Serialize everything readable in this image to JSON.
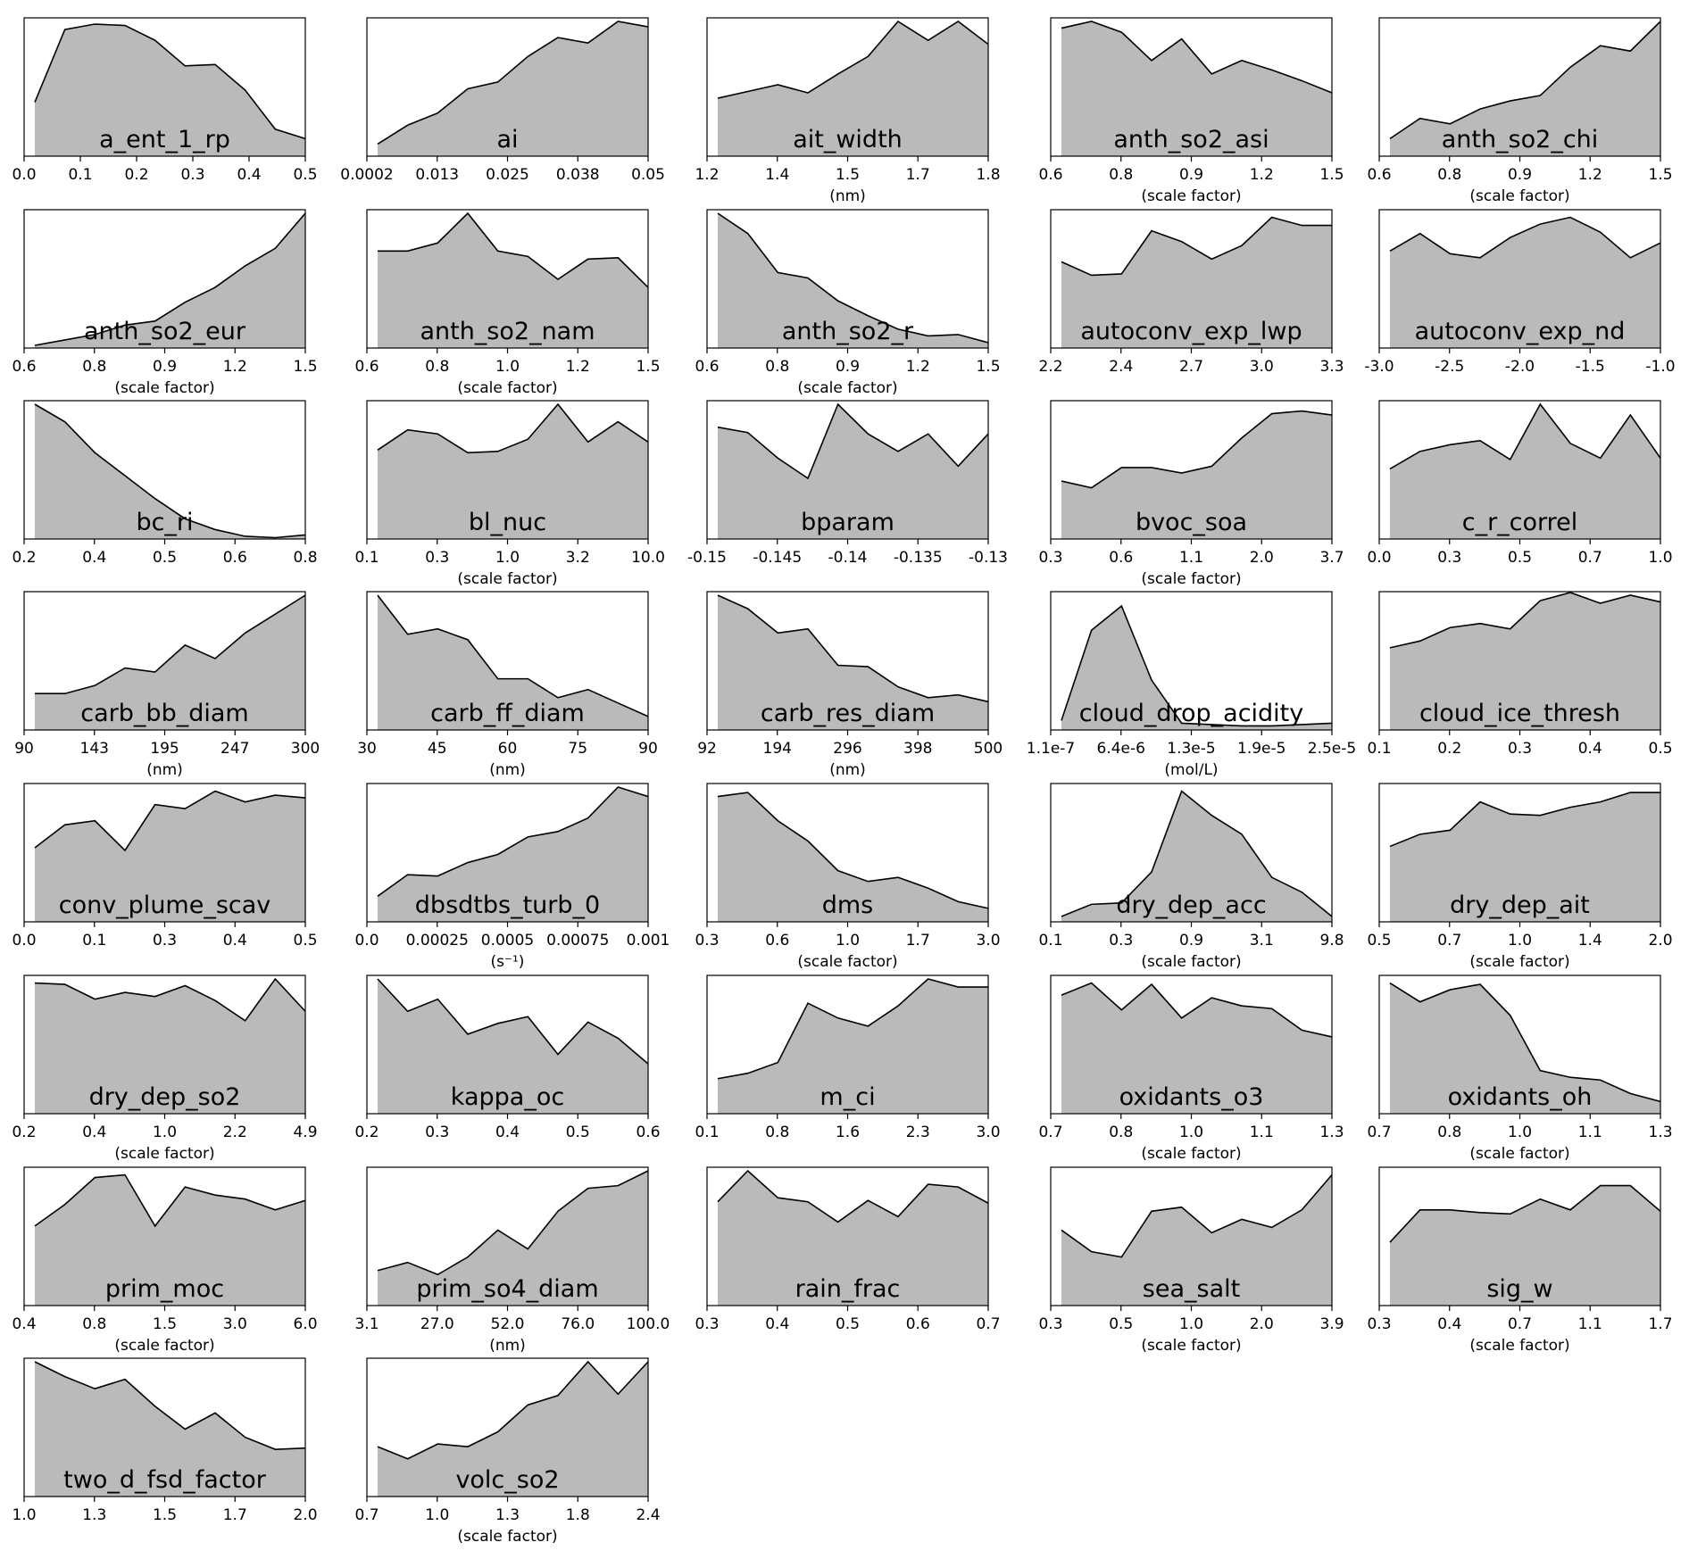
{
  "colors": {
    "fill": "#bababa",
    "line": "#000000",
    "background": "#ffffff"
  },
  "chart_data": [
    {
      "type": "area",
      "title": "a_ent_1_rp",
      "xlabel": "",
      "xticks": [
        "0.0",
        "0.1",
        "0.2",
        "0.3",
        "0.4",
        "0.5"
      ],
      "values": [
        0.4,
        0.94,
        0.98,
        0.97,
        0.86,
        0.67,
        0.68,
        0.49,
        0.2,
        0.13
      ]
    },
    {
      "type": "area",
      "title": "ai",
      "xlabel": "",
      "xticks": [
        "0.0002",
        "0.013",
        "0.025",
        "0.038",
        "0.05"
      ],
      "values": [
        0.09,
        0.23,
        0.32,
        0.5,
        0.55,
        0.74,
        0.88,
        0.84,
        1.0,
        0.96
      ]
    },
    {
      "type": "area",
      "title": "ait_width",
      "xlabel": "(nm)",
      "xticks": [
        "1.2",
        "1.4",
        "1.5",
        "1.7",
        "1.8"
      ],
      "values": [
        0.43,
        0.48,
        0.53,
        0.47,
        0.61,
        0.74,
        1.0,
        0.86,
        1.0,
        0.83
      ]
    },
    {
      "type": "area",
      "title": "anth_so2_asi",
      "xlabel": "(scale factor)",
      "xticks": [
        "0.6",
        "0.8",
        "0.9",
        "1.2",
        "1.5"
      ],
      "values": [
        0.95,
        1.0,
        0.92,
        0.71,
        0.87,
        0.61,
        0.71,
        0.64,
        0.56,
        0.47
      ]
    },
    {
      "type": "area",
      "title": "anth_so2_chi",
      "xlabel": "(scale factor)",
      "xticks": [
        "0.6",
        "0.8",
        "0.9",
        "1.2",
        "1.5"
      ],
      "values": [
        0.13,
        0.28,
        0.24,
        0.35,
        0.41,
        0.45,
        0.66,
        0.82,
        0.78,
        1.0
      ]
    },
    {
      "type": "area",
      "title": "anth_so2_eur",
      "xlabel": "(scale factor)",
      "xticks": [
        "0.6",
        "0.8",
        "0.9",
        "1.2",
        "1.5"
      ],
      "values": [
        0.02,
        0.06,
        0.1,
        0.17,
        0.2,
        0.34,
        0.45,
        0.61,
        0.74,
        1.0
      ]
    },
    {
      "type": "area",
      "title": "anth_so2_nam",
      "xlabel": "(scale factor)",
      "xticks": [
        "0.6",
        "0.8",
        "1.0",
        "1.2",
        "1.5"
      ],
      "values": [
        0.72,
        0.72,
        0.78,
        1.0,
        0.72,
        0.68,
        0.51,
        0.66,
        0.67,
        0.45
      ]
    },
    {
      "type": "area",
      "title": "anth_so2_r",
      "xlabel": "(scale factor)",
      "xticks": [
        "0.6",
        "0.8",
        "0.9",
        "1.2",
        "1.5"
      ],
      "values": [
        1.0,
        0.85,
        0.56,
        0.52,
        0.35,
        0.24,
        0.14,
        0.09,
        0.1,
        0.04
      ]
    },
    {
      "type": "area",
      "title": "autoconv_exp_lwp",
      "xlabel": "",
      "xticks": [
        "2.2",
        "2.4",
        "2.7",
        "3.0",
        "3.3"
      ],
      "values": [
        0.64,
        0.54,
        0.55,
        0.87,
        0.79,
        0.66,
        0.76,
        0.97,
        0.91,
        0.91
      ]
    },
    {
      "type": "area",
      "title": "autoconv_exp_nd",
      "xlabel": "",
      "xticks": [
        "-3.0",
        "-2.5",
        "-2.0",
        "-1.5",
        "-1.0"
      ],
      "values": [
        0.72,
        0.85,
        0.7,
        0.67,
        0.82,
        0.92,
        0.97,
        0.86,
        0.67,
        0.78
      ]
    },
    {
      "type": "area",
      "title": "bc_ri",
      "xlabel": "",
      "xticks": [
        "0.2",
        "0.4",
        "0.5",
        "0.6",
        "0.8"
      ],
      "values": [
        1.0,
        0.87,
        0.64,
        0.47,
        0.3,
        0.15,
        0.07,
        0.02,
        0.01,
        0.03
      ]
    },
    {
      "type": "area",
      "title": "bl_nuc",
      "xlabel": "(scale factor)",
      "xticks": [
        "0.1",
        "0.3",
        "1.0",
        "3.2",
        "10.0"
      ],
      "values": [
        0.66,
        0.81,
        0.78,
        0.64,
        0.65,
        0.74,
        1.0,
        0.72,
        0.87,
        0.72
      ]
    },
    {
      "type": "area",
      "title": "bparam",
      "xlabel": "",
      "xticks": [
        "-0.15",
        "-0.145",
        "-0.14",
        "-0.135",
        "-0.13"
      ],
      "values": [
        0.83,
        0.79,
        0.6,
        0.45,
        1.0,
        0.78,
        0.65,
        0.78,
        0.54,
        0.78
      ]
    },
    {
      "type": "area",
      "title": "bvoc_soa",
      "xlabel": "(scale factor)",
      "xticks": [
        "0.3",
        "0.6",
        "1.1",
        "2.0",
        "3.7"
      ],
      "values": [
        0.43,
        0.38,
        0.53,
        0.53,
        0.49,
        0.54,
        0.75,
        0.93,
        0.95,
        0.92
      ]
    },
    {
      "type": "area",
      "title": "c_r_correl",
      "xlabel": "",
      "xticks": [
        "0.0",
        "0.3",
        "0.5",
        "0.7",
        "1.0"
      ],
      "values": [
        0.52,
        0.65,
        0.7,
        0.73,
        0.59,
        1.0,
        0.71,
        0.6,
        0.92,
        0.6
      ]
    },
    {
      "type": "area",
      "title": "carb_bb_diam",
      "xlabel": "(nm)",
      "xticks": [
        "90",
        "143",
        "195",
        "247",
        "300"
      ],
      "values": [
        0.27,
        0.27,
        0.33,
        0.46,
        0.43,
        0.63,
        0.53,
        0.72,
        0.86,
        1.0
      ]
    },
    {
      "type": "area",
      "title": "carb_ff_diam",
      "xlabel": "(nm)",
      "xticks": [
        "30",
        "45",
        "60",
        "75",
        "90"
      ],
      "values": [
        1.0,
        0.71,
        0.75,
        0.67,
        0.38,
        0.38,
        0.24,
        0.3,
        0.2,
        0.1
      ]
    },
    {
      "type": "area",
      "title": "carb_res_diam",
      "xlabel": "(nm)",
      "xticks": [
        "92",
        "194",
        "296",
        "398",
        "500"
      ],
      "values": [
        1.0,
        0.9,
        0.72,
        0.75,
        0.48,
        0.47,
        0.32,
        0.24,
        0.26,
        0.21
      ]
    },
    {
      "type": "area",
      "title": "cloud_drop_acidity",
      "xlabel": "(mol/L)",
      "xticks": [
        "1.1e-7",
        "6.4e-6",
        "1.3e-5",
        "1.9e-5",
        "2.5e-5"
      ],
      "values": [
        0.07,
        0.74,
        0.92,
        0.37,
        0.05,
        0.04,
        0.03,
        0.03,
        0.04,
        0.05
      ]
    },
    {
      "type": "area",
      "title": "cloud_ice_thresh",
      "xlabel": "",
      "xticks": [
        "0.1",
        "0.2",
        "0.3",
        "0.4",
        "0.5"
      ],
      "values": [
        0.61,
        0.66,
        0.76,
        0.79,
        0.75,
        0.96,
        1.02,
        0.94,
        1.0,
        0.95
      ]
    },
    {
      "type": "area",
      "title": "conv_plume_scav",
      "xlabel": "",
      "xticks": [
        "0.0",
        "0.1",
        "0.3",
        "0.4",
        "0.5"
      ],
      "values": [
        0.55,
        0.72,
        0.75,
        0.53,
        0.87,
        0.84,
        0.97,
        0.89,
        0.94,
        0.92
      ]
    },
    {
      "type": "area",
      "title": "dbsdtbs_turb_0",
      "xlabel": "(s⁻¹)",
      "xticks": [
        "0.0",
        "0.00025",
        "0.0005",
        "0.00075",
        "0.001"
      ],
      "values": [
        0.19,
        0.35,
        0.34,
        0.44,
        0.5,
        0.63,
        0.67,
        0.77,
        1.0,
        0.93
      ]
    },
    {
      "type": "area",
      "title": "dms",
      "xlabel": "(scale factor)",
      "xticks": [
        "0.3",
        "0.6",
        "1.0",
        "1.7",
        "3.0"
      ],
      "values": [
        0.93,
        0.96,
        0.75,
        0.6,
        0.38,
        0.3,
        0.33,
        0.25,
        0.15,
        0.1
      ]
    },
    {
      "type": "area",
      "title": "dry_dep_acc",
      "xlabel": "(scale factor)",
      "xticks": [
        "0.1",
        "0.3",
        "0.9",
        "3.1",
        "9.8"
      ],
      "values": [
        0.04,
        0.13,
        0.14,
        0.37,
        0.97,
        0.79,
        0.65,
        0.33,
        0.22,
        0.04
      ]
    },
    {
      "type": "area",
      "title": "dry_dep_ait",
      "xlabel": "(scale factor)",
      "xticks": [
        "0.5",
        "0.7",
        "1.0",
        "1.4",
        "2.0"
      ],
      "values": [
        0.56,
        0.65,
        0.68,
        0.89,
        0.8,
        0.79,
        0.85,
        0.89,
        0.96,
        0.96
      ]
    },
    {
      "type": "area",
      "title": "dry_dep_so2",
      "xlabel": "(scale factor)",
      "xticks": [
        "0.2",
        "0.4",
        "1.0",
        "2.2",
        "4.9"
      ],
      "values": [
        0.97,
        0.96,
        0.85,
        0.9,
        0.87,
        0.95,
        0.84,
        0.69,
        1.0,
        0.76
      ]
    },
    {
      "type": "area",
      "title": "kappa_oc",
      "xlabel": "",
      "xticks": [
        "0.2",
        "0.3",
        "0.4",
        "0.5",
        "0.6"
      ],
      "values": [
        1.0,
        0.76,
        0.85,
        0.59,
        0.67,
        0.72,
        0.44,
        0.68,
        0.56,
        0.37
      ]
    },
    {
      "type": "area",
      "title": "m_ci",
      "xlabel": "",
      "xticks": [
        "0.1",
        "0.8",
        "1.6",
        "2.3",
        "3.0"
      ],
      "values": [
        0.26,
        0.3,
        0.38,
        0.82,
        0.71,
        0.65,
        0.8,
        1.0,
        0.94,
        0.94
      ]
    },
    {
      "type": "area",
      "title": "oxidants_o3",
      "xlabel": "(scale factor)",
      "xticks": [
        "0.7",
        "0.8",
        "1.0",
        "1.1",
        "1.3"
      ],
      "values": [
        0.88,
        0.97,
        0.77,
        0.96,
        0.71,
        0.86,
        0.8,
        0.78,
        0.62,
        0.57
      ]
    },
    {
      "type": "area",
      "title": "oxidants_oh",
      "xlabel": "(scale factor)",
      "xticks": [
        "0.7",
        "0.8",
        "1.0",
        "1.1",
        "1.3"
      ],
      "values": [
        0.97,
        0.83,
        0.92,
        0.96,
        0.73,
        0.32,
        0.27,
        0.25,
        0.15,
        0.09
      ]
    },
    {
      "type": "area",
      "title": "prim_moc",
      "xlabel": "(scale factor)",
      "xticks": [
        "0.4",
        "0.8",
        "1.5",
        "3.0",
        "6.0"
      ],
      "values": [
        0.59,
        0.75,
        0.95,
        0.97,
        0.59,
        0.88,
        0.82,
        0.79,
        0.71,
        0.78
      ]
    },
    {
      "type": "area",
      "title": "prim_so4_diam",
      "xlabel": "(nm)",
      "xticks": [
        "3.1",
        "27.0",
        "52.0",
        "76.0",
        "100.0"
      ],
      "values": [
        0.26,
        0.32,
        0.23,
        0.36,
        0.56,
        0.42,
        0.7,
        0.87,
        0.89,
        1.0
      ]
    },
    {
      "type": "area",
      "title": "rain_frac",
      "xlabel": "",
      "xticks": [
        "0.3",
        "0.4",
        "0.5",
        "0.6",
        "0.7"
      ],
      "values": [
        0.77,
        1.0,
        0.8,
        0.77,
        0.62,
        0.78,
        0.66,
        0.9,
        0.88,
        0.76
      ]
    },
    {
      "type": "area",
      "title": "sea_salt",
      "xlabel": "(scale factor)",
      "xticks": [
        "0.3",
        "0.5",
        "1.0",
        "2.0",
        "3.9"
      ],
      "values": [
        0.56,
        0.4,
        0.36,
        0.7,
        0.73,
        0.54,
        0.64,
        0.58,
        0.71,
        0.97
      ]
    },
    {
      "type": "area",
      "title": "sig_w",
      "xlabel": "(scale factor)",
      "xticks": [
        "0.3",
        "0.4",
        "0.7",
        "1.1",
        "1.7"
      ],
      "values": [
        0.47,
        0.71,
        0.71,
        0.69,
        0.68,
        0.79,
        0.71,
        0.89,
        0.89,
        0.7
      ]
    },
    {
      "type": "area",
      "title": "two_d_fsd_factor",
      "xlabel": "",
      "xticks": [
        "1.0",
        "1.3",
        "1.5",
        "1.7",
        "2.0"
      ],
      "values": [
        1.0,
        0.89,
        0.8,
        0.87,
        0.67,
        0.5,
        0.62,
        0.44,
        0.35,
        0.36
      ]
    },
    {
      "type": "area",
      "title": "volc_so2",
      "xlabel": "(scale factor)",
      "xticks": [
        "0.7",
        "1.0",
        "1.3",
        "1.8",
        "2.4"
      ],
      "values": [
        0.37,
        0.28,
        0.39,
        0.37,
        0.48,
        0.68,
        0.75,
        1.0,
        0.76,
        1.0
      ]
    }
  ]
}
